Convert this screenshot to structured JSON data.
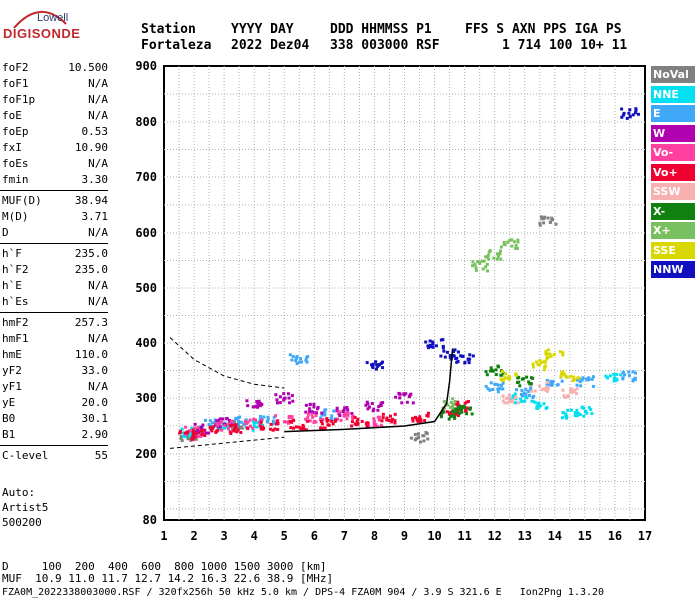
{
  "logo": {
    "top": "Lowell",
    "main": "DIGISONDE"
  },
  "header": {
    "row1": [
      "Station",
      "YYYY DAY",
      "DDD HHMMSS P1",
      "FFS S AXN PPS IGA PS"
    ],
    "row2": [
      "Fortaleza",
      "2022 Dez04",
      "338 003000 RSF",
      "1 714 100 10+ 11"
    ]
  },
  "params": [
    {
      "group": 1,
      "name": "foF2",
      "value": "10.500"
    },
    {
      "group": 1,
      "name": "foF1",
      "value": "N/A"
    },
    {
      "group": 1,
      "name": "foF1p",
      "value": "N/A"
    },
    {
      "group": 1,
      "name": "foE",
      "value": "N/A"
    },
    {
      "group": 1,
      "name": "foEp",
      "value": "0.53"
    },
    {
      "group": 1,
      "name": "fxI",
      "value": "10.90"
    },
    {
      "group": 1,
      "name": "foEs",
      "value": "N/A"
    },
    {
      "group": 1,
      "name": "fmin",
      "value": "3.30"
    },
    {
      "group": 2,
      "name": "MUF(D)",
      "value": "38.94"
    },
    {
      "group": 2,
      "name": "M(D)",
      "value": "3.71"
    },
    {
      "group": 2,
      "name": "D",
      "value": "N/A"
    },
    {
      "group": 3,
      "name": "h`F",
      "value": "235.0"
    },
    {
      "group": 3,
      "name": "h`F2",
      "value": "235.0"
    },
    {
      "group": 3,
      "name": "h`E",
      "value": "N/A"
    },
    {
      "group": 3,
      "name": "h`Es",
      "value": "N/A"
    },
    {
      "group": 4,
      "name": "hmF2",
      "value": "257.3"
    },
    {
      "group": 4,
      "name": "hmF1",
      "value": "N/A"
    },
    {
      "group": 4,
      "name": "hmE",
      "value": "110.0"
    },
    {
      "group": 4,
      "name": "yF2",
      "value": "33.0"
    },
    {
      "group": 4,
      "name": "yF1",
      "value": "N/A"
    },
    {
      "group": 4,
      "name": "yE",
      "value": "20.0"
    },
    {
      "group": 4,
      "name": "B0",
      "value": "30.1"
    },
    {
      "group": 4,
      "name": "B1",
      "value": "2.90"
    },
    {
      "group": 5,
      "name": "C-level",
      "value": "55"
    }
  ],
  "auto": [
    "Auto:",
    "Artist5",
    "500200"
  ],
  "legend": [
    {
      "label": "NoVal",
      "color": "#808080"
    },
    {
      "label": "NNE",
      "color": "#00e0f0"
    },
    {
      "label": "E",
      "color": "#40a8f8"
    },
    {
      "label": "W",
      "color": "#b000b0"
    },
    {
      "label": "Vo-",
      "color": "#ff40a0"
    },
    {
      "label": "Vo+",
      "color": "#f00030"
    },
    {
      "label": "SSW",
      "color": "#f8b0b0"
    },
    {
      "label": "X-",
      "color": "#108010"
    },
    {
      "label": "X+",
      "color": "#78c060"
    },
    {
      "label": "SSE",
      "color": "#d8d800"
    },
    {
      "label": "NNW",
      "color": "#1010c0"
    }
  ],
  "footer": {
    "line1": "D     100  200  400  600  800 1000 1500 3000 [km]",
    "line2": "MUF  10.9 11.0 11.7 12.7 14.2 16.3 22.6 38.9 [MHz]",
    "line3": "FZA0M_2022338003000.RSF / 320fx256h 50 kHz 5.0 km / DPS-4 FZA0M 904 / 3.9 S 321.6 E   Ion2Png 1.3.20"
  },
  "chart_data": {
    "type": "scatter",
    "xlabel": "",
    "ylabel": "",
    "xlim": [
      1,
      17
    ],
    "ylim": [
      80,
      900
    ],
    "x_ticks": [
      1,
      2,
      3,
      4,
      5,
      6,
      7,
      8,
      9,
      10,
      11,
      12,
      13,
      14,
      15,
      16,
      17
    ],
    "y_ticks": [
      80,
      200,
      300,
      400,
      500,
      600,
      700,
      800,
      900
    ],
    "grid": true,
    "legend_position": "right",
    "series": [
      {
        "name": "NoVal",
        "points": [
          [
            1.8,
            232
          ],
          [
            3.5,
            250
          ],
          [
            9.5,
            230
          ],
          [
            13.8,
            620
          ]
        ]
      },
      {
        "name": "NNE",
        "points": [
          [
            1.9,
            240
          ],
          [
            3.0,
            248
          ],
          [
            4.0,
            250
          ],
          [
            12.8,
            300
          ],
          [
            13.5,
            290
          ],
          [
            14.5,
            270
          ],
          [
            15.0,
            275
          ],
          [
            16.0,
            340
          ]
        ]
      },
      {
        "name": "E",
        "points": [
          [
            2.5,
            252
          ],
          [
            3.5,
            258
          ],
          [
            4.5,
            262
          ],
          [
            5.5,
            370
          ],
          [
            6.5,
            270
          ],
          [
            12.0,
            320
          ],
          [
            13.0,
            310
          ],
          [
            14.0,
            330
          ],
          [
            15.0,
            330
          ],
          [
            16.5,
            340
          ]
        ]
      },
      {
        "name": "W",
        "points": [
          [
            2.2,
            245
          ],
          [
            3.0,
            255
          ],
          [
            4.0,
            290
          ],
          [
            5.0,
            300
          ],
          [
            6.0,
            280
          ],
          [
            7.0,
            275
          ],
          [
            8.0,
            285
          ],
          [
            9.0,
            300
          ]
        ]
      },
      {
        "name": "Vo-",
        "points": [
          [
            2.0,
            240
          ],
          [
            3.0,
            250
          ],
          [
            4.0,
            255
          ],
          [
            5.0,
            262
          ],
          [
            6.0,
            265
          ],
          [
            7.0,
            268
          ],
          [
            8.0,
            258
          ]
        ]
      },
      {
        "name": "Vo+",
        "points": [
          [
            1.8,
            235
          ],
          [
            2.5,
            240
          ],
          [
            3.5,
            245
          ],
          [
            4.5,
            250
          ],
          [
            5.5,
            252
          ],
          [
            6.5,
            255
          ],
          [
            7.5,
            258
          ],
          [
            8.5,
            262
          ],
          [
            9.5,
            265
          ],
          [
            10.5,
            275
          ],
          [
            11.0,
            285
          ]
        ]
      },
      {
        "name": "SSW",
        "points": [
          [
            12.5,
            300
          ],
          [
            13.5,
            320
          ],
          [
            14.5,
            310
          ]
        ]
      },
      {
        "name": "X-",
        "points": [
          [
            10.5,
            270
          ],
          [
            11.0,
            280
          ],
          [
            12.0,
            350
          ],
          [
            13.0,
            330
          ]
        ]
      },
      {
        "name": "X+",
        "points": [
          [
            11.5,
            540
          ],
          [
            12.0,
            560
          ],
          [
            12.5,
            580
          ],
          [
            10.5,
            290
          ]
        ]
      },
      {
        "name": "SSE",
        "points": [
          [
            12.5,
            340
          ],
          [
            13.5,
            360
          ],
          [
            14.0,
            380
          ],
          [
            14.5,
            340
          ]
        ]
      },
      {
        "name": "NNW",
        "points": [
          [
            10.0,
            400
          ],
          [
            10.5,
            380
          ],
          [
            11.0,
            370
          ],
          [
            8.0,
            360
          ],
          [
            16.5,
            815
          ]
        ]
      }
    ],
    "dashed_curve": [
      [
        1.2,
        410
      ],
      [
        2.0,
        370
      ],
      [
        3.0,
        340
      ],
      [
        4.0,
        325
      ],
      [
        5.0,
        318
      ]
    ],
    "profile_curve": [
      [
        5.0,
        240
      ],
      [
        7.0,
        244
      ],
      [
        9.0,
        250
      ],
      [
        10.0,
        258
      ],
      [
        10.4,
        290
      ],
      [
        10.5,
        330
      ],
      [
        10.6,
        390
      ]
    ]
  }
}
